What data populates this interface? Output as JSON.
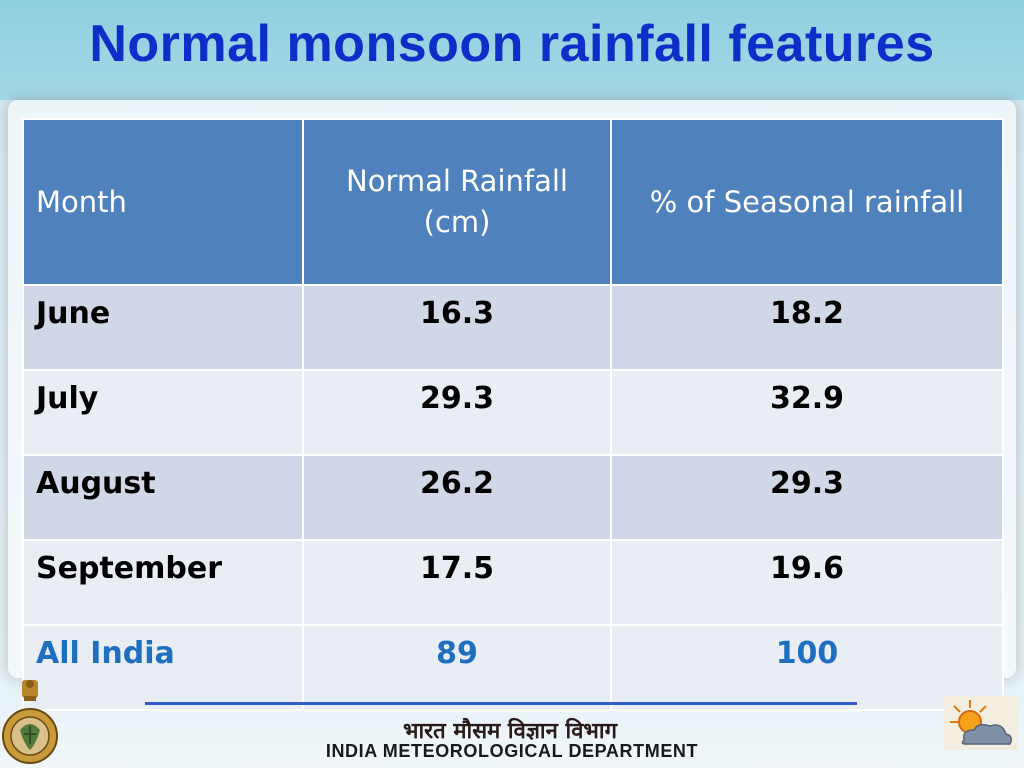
{
  "slide": {
    "title": "Normal monsoon rainfall features"
  },
  "table": {
    "headers": {
      "month": "Month",
      "rainfall": "Normal  Rainfall (cm)",
      "percent": "% of Seasonal rainfall"
    },
    "rows": [
      {
        "month": "June",
        "rainfall": "16.3",
        "percent": "18.2"
      },
      {
        "month": "July",
        "rainfall": "29.3",
        "percent": "32.9"
      },
      {
        "month": "August",
        "rainfall": "26.2",
        "percent": "29.3"
      },
      {
        "month": "September",
        "rainfall": "17.5",
        "percent": "19.6"
      }
    ],
    "total": {
      "month": "All India",
      "rainfall": "89",
      "percent": "100"
    }
  },
  "footer": {
    "department": "INDIA METEOROLOGICAL DEPARTMENT",
    "hindi_name": "भारत मौसम विज्ञान विभाग"
  },
  "colors": {
    "title": "#0b2fc8",
    "header_bg": "#4f81bd",
    "row_odd": "#d0d8e8",
    "row_even": "#e9edf4",
    "total_text": "#1f6fc0"
  }
}
